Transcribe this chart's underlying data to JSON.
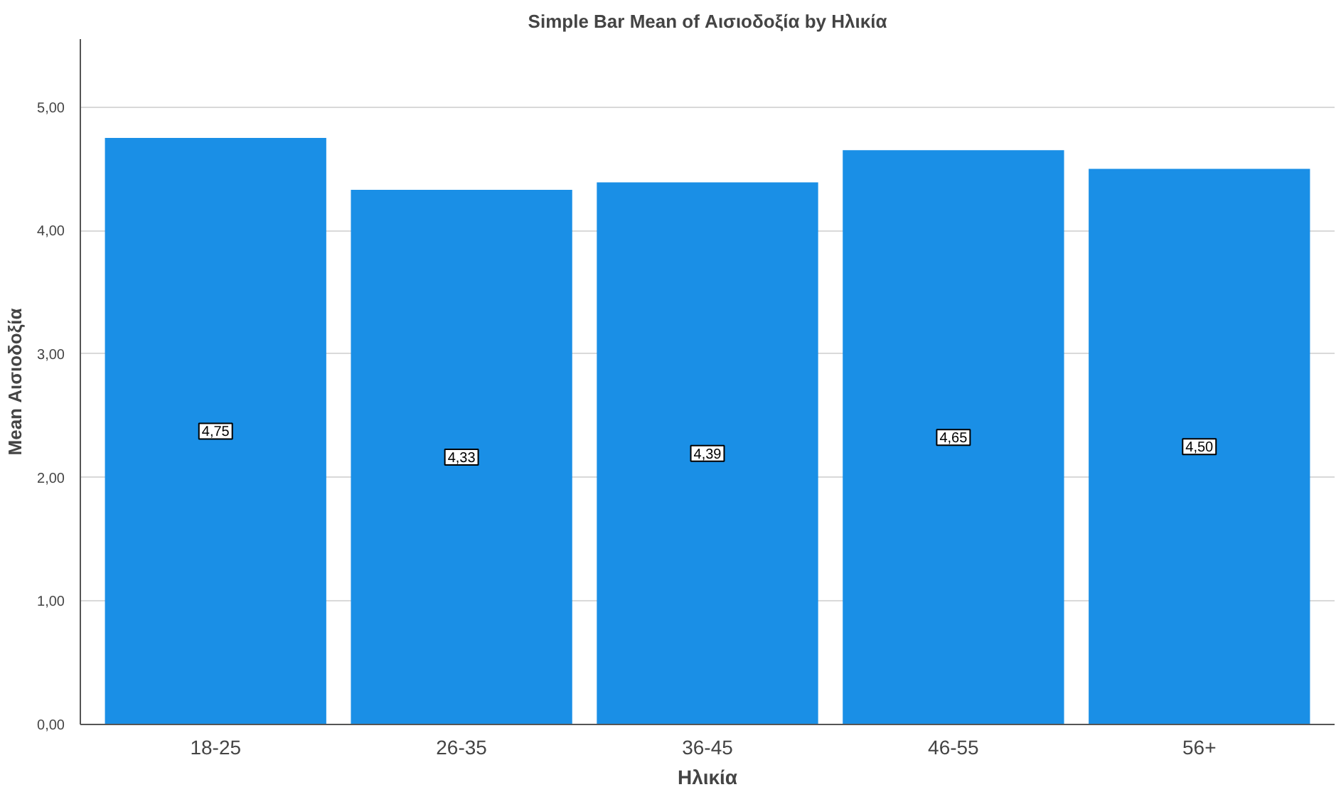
{
  "chart_data": {
    "type": "bar",
    "title": "Simple Bar Mean of Αισιοδοξία by Ηλικία",
    "xlabel": "Ηλικία",
    "ylabel": "Mean Αισιοδοξία",
    "categories": [
      "18-25",
      "26-35",
      "36-45",
      "46-55",
      "56+"
    ],
    "values": [
      4.75,
      4.33,
      4.39,
      4.65,
      4.5
    ],
    "value_labels": [
      "4,75",
      "4,33",
      "4,39",
      "4,65",
      "4,50"
    ],
    "color": "#1a8fe6",
    "ylim": [
      0,
      5.55
    ],
    "yticks": [
      {
        "value": 0,
        "label": "0,00"
      },
      {
        "value": 1,
        "label": "1,00"
      },
      {
        "value": 2,
        "label": "2,00"
      },
      {
        "value": 3,
        "label": "3,00"
      },
      {
        "value": 4,
        "label": "4,00"
      },
      {
        "value": 5,
        "label": "5,00"
      }
    ],
    "grid": "y"
  }
}
